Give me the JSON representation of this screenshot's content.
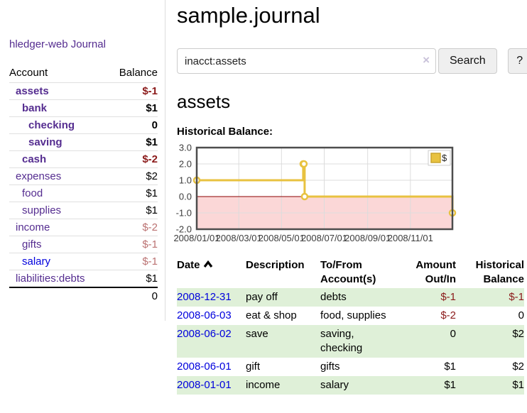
{
  "app": {
    "title": "hledger-web"
  },
  "sidebar": {
    "journal_link": "Journal",
    "headers": {
      "account": "Account",
      "balance": "Balance"
    },
    "accounts": [
      {
        "name": "assets",
        "indent": 1,
        "bold": true,
        "link_color": "purple",
        "balance": "$-1",
        "balance_class": "neg"
      },
      {
        "name": "bank",
        "indent": 2,
        "bold": true,
        "link_color": "purple",
        "balance": "$1",
        "balance_class": ""
      },
      {
        "name": "checking",
        "indent": 3,
        "bold": true,
        "link_color": "purple",
        "balance": "0",
        "balance_class": ""
      },
      {
        "name": "saving",
        "indent": 3,
        "bold": true,
        "link_color": "purple",
        "balance": "$1",
        "balance_class": ""
      },
      {
        "name": "cash",
        "indent": 2,
        "bold": true,
        "link_color": "purple",
        "balance": "$-2",
        "balance_class": "neg"
      },
      {
        "name": "expenses",
        "indent": 1,
        "bold": false,
        "link_color": "purple",
        "balance": "$2",
        "balance_class": ""
      },
      {
        "name": "food",
        "indent": 2,
        "bold": false,
        "link_color": "purple",
        "balance": "$1",
        "balance_class": ""
      },
      {
        "name": "supplies",
        "indent": 2,
        "bold": false,
        "link_color": "purple",
        "balance": "$1",
        "balance_class": ""
      },
      {
        "name": "income",
        "indent": 1,
        "bold": false,
        "link_color": "purple",
        "balance": "$-2",
        "balance_class": "neg-muted"
      },
      {
        "name": "gifts",
        "indent": 2,
        "bold": false,
        "link_color": "purple",
        "balance": "$-1",
        "balance_class": "neg-muted"
      },
      {
        "name": "salary",
        "indent": 2,
        "bold": false,
        "link_color": "blue",
        "balance": "$-1",
        "balance_class": "neg-muted"
      },
      {
        "name": "liabilities:debts",
        "indent": 1,
        "bold": false,
        "link_color": "purple",
        "balance": "$1",
        "balance_class": ""
      }
    ],
    "total": "0"
  },
  "main": {
    "title": "sample.journal",
    "search": {
      "value": "inacct:assets",
      "clear_icon": "×",
      "button_label": "Search",
      "help_label": "?"
    },
    "account_heading": "assets",
    "chart_label": "Historical Balance:"
  },
  "chart_data": {
    "type": "line",
    "title": "Historical Balance:",
    "series": [
      {
        "name": "$",
        "color": "#e8c240",
        "step": true,
        "points": [
          [
            "2008-01-01",
            1
          ],
          [
            "2008-06-01",
            2
          ],
          [
            "2008-06-02",
            2
          ],
          [
            "2008-06-03",
            0
          ],
          [
            "2008-12-31",
            -1
          ]
        ]
      }
    ],
    "xlim": [
      "2008-01-01",
      "2008-12-31"
    ],
    "ylim": [
      -2,
      3
    ],
    "y_ticks": [
      "3.0",
      "2.0",
      "1.0",
      "0.0",
      "-1.0",
      "-2.0"
    ],
    "x_ticks": [
      "2008/01/01",
      "2008/03/01",
      "2008/05/01",
      "2008/07/01",
      "2008/09/01",
      "2008/11/01"
    ],
    "legend": {
      "position": "top-right",
      "label": "$"
    },
    "grid": true,
    "colors": {
      "negative_region": "#fbd7d7",
      "zero_line": "#8b0000",
      "grid_line": "#dcdcdc",
      "plot_border": "#4d4d4d",
      "legend_swatch": "#e8c240",
      "legend_swatch_border": "#c9a42e"
    }
  },
  "register": {
    "headers": [
      "Date",
      "Description",
      "To/From Account(s)",
      "Amount Out/In",
      "Historical Balance"
    ],
    "rows": [
      {
        "date": "2008-12-31",
        "description": "pay off",
        "accounts": "debts",
        "amount": "$-1",
        "amount_class": "neg",
        "balance": "$-1",
        "balance_class": "neg"
      },
      {
        "date": "2008-06-03",
        "description": "eat & shop",
        "accounts": "food, supplies",
        "amount": "$-2",
        "amount_class": "neg",
        "balance": "0",
        "balance_class": ""
      },
      {
        "date": "2008-06-02",
        "description": "save",
        "accounts": "saving, checking",
        "amount": "0",
        "amount_class": "",
        "balance": "$2",
        "balance_class": ""
      },
      {
        "date": "2008-06-01",
        "description": "gift",
        "accounts": "gifts",
        "amount": "$1",
        "amount_class": "",
        "balance": "$2",
        "balance_class": ""
      },
      {
        "date": "2008-01-01",
        "description": "income",
        "accounts": "salary",
        "amount": "$1",
        "amount_class": "",
        "balance": "$1",
        "balance_class": ""
      }
    ]
  }
}
